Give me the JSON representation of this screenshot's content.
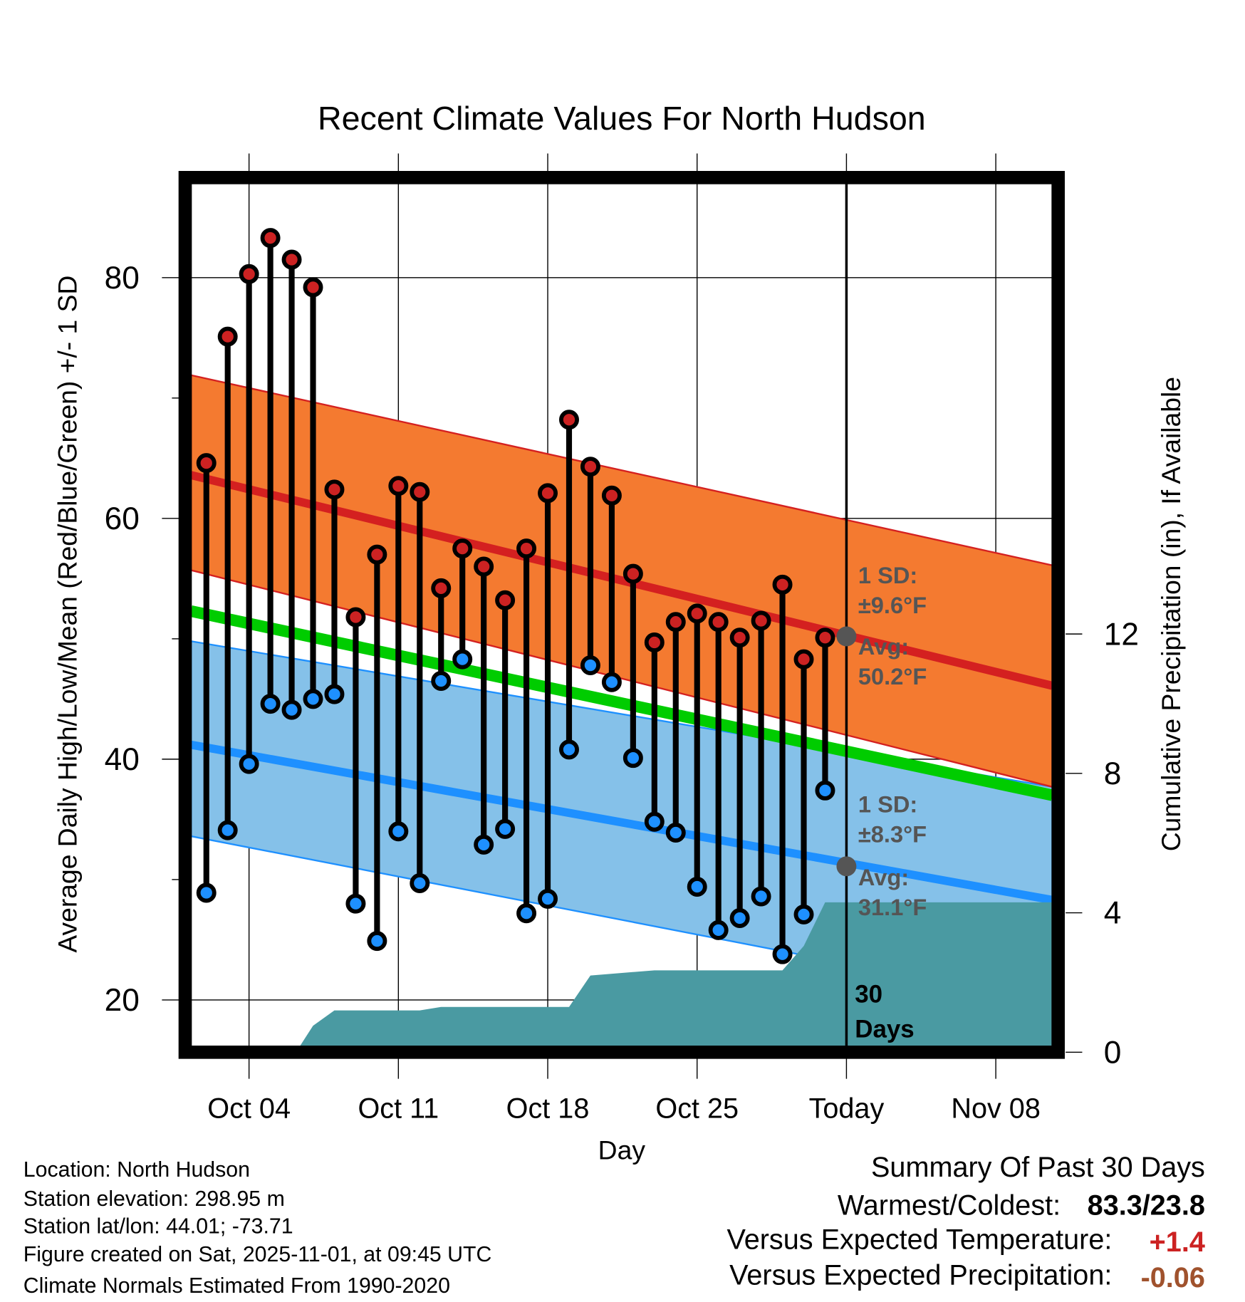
{
  "chart_data": {
    "type": "line",
    "title": "Recent Climate Values For North Hudson",
    "xlabel": "Day",
    "ylabel": "Average Daily High/Low/Mean (Red/Blue/Green) +/- 1 SD",
    "ylabel_right": "Cumulative Precipitation (in), If Available",
    "x_unit": "day of October (Nov 1 = 32)",
    "xlim": [
      1.28,
      41.65
    ],
    "ylim": [
      16.07,
      87.9
    ],
    "ylim_right": [
      0,
      18
    ],
    "grid": true,
    "x_ticks": [
      {
        "day": 4,
        "label": "Oct 04"
      },
      {
        "day": 11,
        "label": "Oct 11"
      },
      {
        "day": 18,
        "label": "Oct 18"
      },
      {
        "day": 25,
        "label": "Oct 25"
      },
      {
        "day": 32,
        "label": "Today"
      },
      {
        "day": 39,
        "label": "Nov 08"
      }
    ],
    "y_ticks": [
      20,
      40,
      60,
      80
    ],
    "y_ticks_right": [
      0,
      4,
      8,
      12
    ],
    "days": [
      2,
      3,
      4,
      5,
      6,
      7,
      8,
      9,
      10,
      11,
      12,
      13,
      14,
      15,
      16,
      17,
      18,
      19,
      20,
      21,
      22,
      23,
      24,
      25,
      26,
      27,
      28,
      29,
      30,
      31
    ],
    "series": [
      {
        "name": "Daily High",
        "color": "#CC2222",
        "values": [
          64.6,
          75.1,
          80.3,
          83.3,
          81.5,
          79.2,
          62.4,
          51.8,
          57.0,
          62.7,
          62.2,
          54.2,
          57.5,
          56.0,
          53.2,
          57.5,
          62.1,
          68.2,
          64.3,
          61.9,
          55.4,
          49.7,
          51.4,
          52.1,
          51.4,
          50.1,
          51.5,
          54.5,
          48.3,
          50.1
        ]
      },
      {
        "name": "Daily Low",
        "color": "#1E90FF",
        "values": [
          28.9,
          34.1,
          39.6,
          44.6,
          44.1,
          45.0,
          45.4,
          28.0,
          24.9,
          34.0,
          29.7,
          46.5,
          48.3,
          32.9,
          34.2,
          27.2,
          28.4,
          40.8,
          47.8,
          46.4,
          40.1,
          34.8,
          33.9,
          29.4,
          25.8,
          26.8,
          28.6,
          23.8,
          27.1,
          37.4
        ]
      }
    ],
    "normals": {
      "high_mean": {
        "start": 63.6,
        "end": 46.1,
        "color": "#D42020"
      },
      "high_band": {
        "upper_start": 71.9,
        "upper_end": 56.1,
        "lower_start": 55.7,
        "lower_end": 37.7,
        "color": "#F47A30"
      },
      "mean": {
        "start": 52.3,
        "end": 37.0,
        "color": "#00CC00"
      },
      "low_mean": {
        "start": 41.2,
        "end": 28.3,
        "color": "#1E90FF"
      },
      "low_band": {
        "upper_start": 49.8,
        "upper_end": 37.7,
        "lower_start": 33.6,
        "lower_end": 19.7,
        "color": "#85C1E9"
      }
    },
    "precip": {
      "color": "#4A9AA2",
      "days": [
        6.2,
        7.0,
        8.0,
        12.0,
        13.0,
        19.0,
        20.0,
        23.0,
        29.0,
        30.0,
        31.0,
        41.65
      ],
      "values": [
        0,
        0.76,
        1.2,
        1.2,
        1.3,
        1.3,
        2.2,
        2.35,
        2.35,
        3.05,
        4.3,
        4.3
      ]
    },
    "annotations": {
      "high_sd_label": "1 SD:",
      "high_sd_value": "±9.6°F",
      "high_avg_label": "Avg:",
      "high_avg_value": "50.2°F",
      "low_sd_label": "1 SD:",
      "low_sd_value": "±8.3°F",
      "low_avg_label": "Avg:",
      "low_avg_value": "31.1°F",
      "days_num": "30",
      "days_label": "Days",
      "today_high_avg": 50.2,
      "today_low_avg": 31.1
    }
  },
  "info": {
    "location": "Location: North Hudson",
    "elevation": "Station elevation: 298.95 m",
    "latlon": "Station lat/lon: 44.01; -73.71",
    "created": "Figure created on Sat, 2025-11-01, at 09:45 UTC",
    "normals": "Climate Normals Estimated From 1990-2020"
  },
  "summary": {
    "title": "Summary Of Past 30 Days",
    "warmest_label": "Warmest/Coldest:",
    "warmest_value": "83.3/23.8",
    "temp_label": "Versus Expected Temperature:",
    "temp_value": "+1.4",
    "temp_color": "#CC2222",
    "precip_label": "Versus Expected Precipitation:",
    "precip_value": "-0.06",
    "precip_color": "#A0522D"
  }
}
